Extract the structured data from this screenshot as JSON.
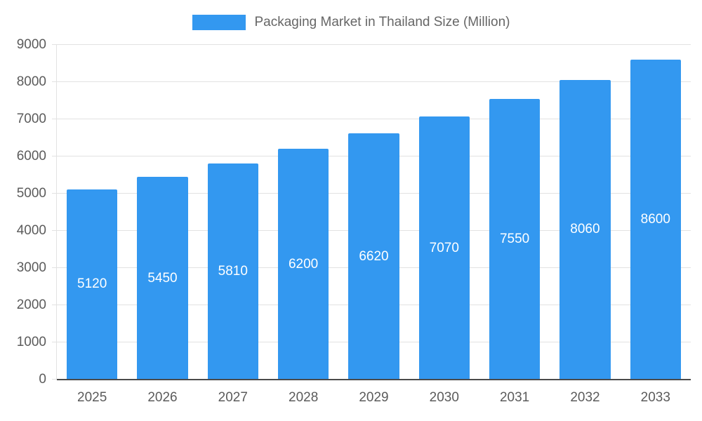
{
  "legend": {
    "label": "Packaging Market in Thailand Size (Million)"
  },
  "chart_data": {
    "type": "bar",
    "title": "Packaging Market in Thailand Size (Million)",
    "categories": [
      "2025",
      "2026",
      "2027",
      "2028",
      "2029",
      "2030",
      "2031",
      "2032",
      "2033"
    ],
    "values": [
      5120,
      5450,
      5810,
      6200,
      6620,
      7070,
      7550,
      8060,
      8600
    ],
    "xlabel": "",
    "ylabel": "",
    "ylim": [
      0,
      9000
    ],
    "yticks": [
      0,
      1000,
      2000,
      3000,
      4000,
      5000,
      6000,
      7000,
      8000,
      9000
    ],
    "grid": true,
    "legend_position": "top",
    "bar_color": "#3398F0",
    "value_label_color": "#ffffff",
    "axis_text_color": "#5b5b5b",
    "grid_color": "#e2e2e2",
    "baseline_color": "#4a4a4a",
    "title_color": "#666666"
  }
}
